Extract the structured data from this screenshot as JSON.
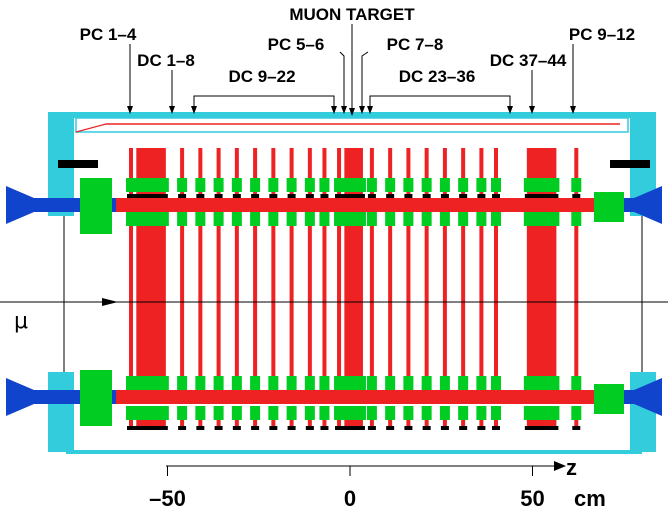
{
  "labels": {
    "muon_target": "MUON TARGET",
    "pc_1_4": "PC 1–4",
    "dc_1_8": "DC 1–8",
    "dc_9_22": "DC 9–22",
    "pc_5_6": "PC 5–6",
    "pc_7_8": "PC 7–8",
    "dc_23_36": "DC 23–36",
    "dc_37_44": "DC 37–44",
    "pc_9_12": "PC 9–12",
    "beam": "μ"
  },
  "axis": {
    "symbol": "z",
    "unit": "cm",
    "ticks": [
      {
        "label": "–50",
        "value": -50
      },
      {
        "label": "0",
        "value": 0
      },
      {
        "label": "50",
        "value": 50
      }
    ]
  },
  "colors": {
    "frame": "#33ccdd",
    "support": "#00cc22",
    "chamber": "#ee2222",
    "beam_pipe": "#1144cc",
    "dark": "#000000"
  },
  "chamber_z_cm": [
    -60,
    -58,
    -57,
    -56,
    -55,
    -54,
    -53,
    -52,
    -51,
    -46,
    -41,
    -36,
    -31,
    -26,
    -21,
    -16,
    -11,
    -7,
    -3,
    -1,
    0,
    1,
    2,
    3,
    6,
    11,
    16,
    21,
    26,
    31,
    36,
    40,
    49,
    50,
    51,
    52,
    53,
    54,
    55,
    56,
    62
  ]
}
